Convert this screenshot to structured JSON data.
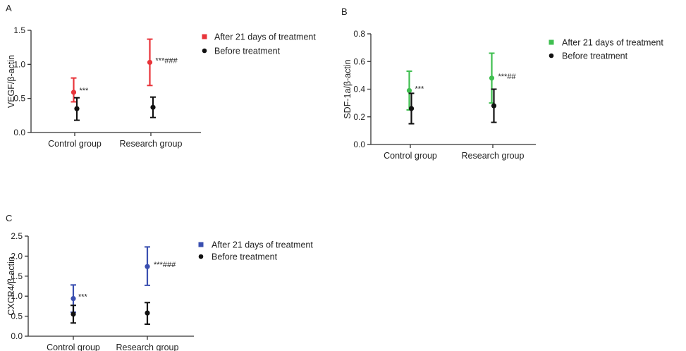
{
  "chart_data": [
    {
      "panel": "A",
      "type": "scatter",
      "ylabel": "VEGF/β-actin",
      "ylim": [
        0,
        1.5
      ],
      "yticks": [
        "0.0",
        "0.5",
        "1.0",
        "1.5"
      ],
      "categories": [
        "Control group",
        "Research group"
      ],
      "series": [
        {
          "name": "After 21 days of treatment",
          "color": "#e8343a",
          "values": [
            0.59,
            1.03
          ],
          "err_low": [
            0.45,
            0.69
          ],
          "err_high": [
            0.8,
            1.37
          ]
        },
        {
          "name": "Before treatment",
          "color": "#111111",
          "values": [
            0.35,
            0.37
          ],
          "err_low": [
            0.18,
            0.22
          ],
          "err_high": [
            0.51,
            0.52
          ]
        }
      ],
      "annotations": [
        "***",
        "***###"
      ]
    },
    {
      "panel": "B",
      "type": "scatter",
      "ylabel": "SDF-1a/β-actin",
      "ylim": [
        0,
        0.8
      ],
      "yticks": [
        "0.0",
        "0.2",
        "0.4",
        "0.6",
        "0.8"
      ],
      "categories": [
        "Control group",
        "Research group"
      ],
      "series": [
        {
          "name": "After 21 days of treatment",
          "color": "#3fbf50",
          "values": [
            0.39,
            0.48
          ],
          "err_low": [
            0.25,
            0.3
          ],
          "err_high": [
            0.53,
            0.66
          ]
        },
        {
          "name": "Before treatment",
          "color": "#111111",
          "values": [
            0.26,
            0.28
          ],
          "err_low": [
            0.15,
            0.16
          ],
          "err_high": [
            0.37,
            0.4
          ]
        }
      ],
      "annotations": [
        "***",
        "***##"
      ]
    },
    {
      "panel": "C",
      "type": "scatter",
      "ylabel": "CXCR4/β-actin",
      "ylim": [
        0,
        2.5
      ],
      "yticks": [
        "0.0",
        "0.5",
        "1.0",
        "1.5",
        "2.0",
        "2.5"
      ],
      "categories": [
        "Control group",
        "Research group"
      ],
      "series": [
        {
          "name": "After 21 days of treatment",
          "color": "#3a4fb0",
          "values": [
            0.94,
            1.74
          ],
          "err_low": [
            0.6,
            1.27
          ],
          "err_high": [
            1.28,
            2.23
          ]
        },
        {
          "name": "Before treatment",
          "color": "#111111",
          "values": [
            0.55,
            0.58
          ],
          "err_low": [
            0.33,
            0.3
          ],
          "err_high": [
            0.77,
            0.84
          ]
        }
      ],
      "annotations": [
        "***",
        "***###"
      ]
    }
  ]
}
